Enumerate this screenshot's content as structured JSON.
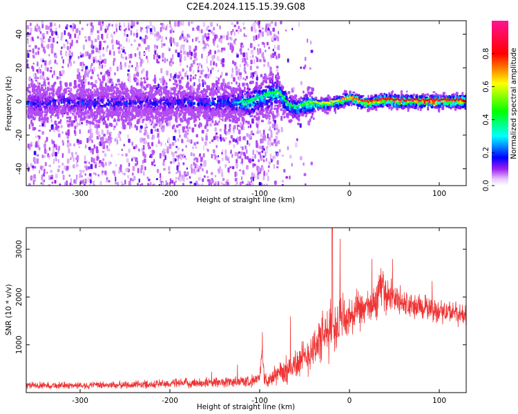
{
  "title": "C2E4.2024.115.15.39.G08",
  "chart_data": [
    {
      "type": "heatmap",
      "title": "C2E4.2024.115.15.39.G08",
      "xlabel": "Height of straight line (km)",
      "ylabel": "Frequency (Hz)",
      "xlim": [
        -360,
        130
      ],
      "ylim": [
        -50,
        48
      ],
      "xticks": [
        -300,
        -200,
        -100,
        0,
        100
      ],
      "yticks": [
        -40,
        -20,
        0,
        20,
        40
      ],
      "colorbar": {
        "label": "Normalized spectral amplitude",
        "range": [
          0,
          1
        ],
        "ticks": [
          0.0,
          0.2,
          0.4,
          0.6,
          0.8
        ],
        "tick_labels": [
          "0.0",
          "0.2",
          "0.4",
          "0.6",
          "0.8"
        ],
        "colors": [
          "#ffffff",
          "#a020f0",
          "#0000ff",
          "#00ffff",
          "#00ff00",
          "#ffff00",
          "#ff0000",
          "#ff1493"
        ]
      },
      "ridge": {
        "x": [
          -360,
          -300,
          -200,
          -130,
          -115,
          -100,
          -90,
          -80,
          -70,
          -60,
          -50,
          -40,
          -30,
          -20,
          -10,
          0,
          10,
          20,
          30,
          40,
          50,
          60,
          70,
          80,
          90,
          100,
          110,
          120,
          130
        ],
        "y": [
          0,
          0,
          0,
          0,
          0,
          3,
          5,
          6,
          -1,
          -3,
          -1,
          0,
          -1,
          0,
          1,
          3,
          1,
          0,
          1,
          2,
          1,
          1,
          1,
          1,
          1,
          1,
          1,
          1,
          1
        ],
        "peak_amplitude": [
          0.2,
          0.2,
          0.2,
          0.25,
          0.45,
          0.4,
          0.45,
          0.5,
          0.45,
          0.4,
          0.5,
          0.55,
          0.6,
          0.65,
          0.7,
          0.75,
          0.8,
          0.85,
          0.85,
          0.9,
          0.9,
          0.9,
          0.9,
          0.9,
          0.9,
          0.9,
          0.9,
          0.9,
          0.9
        ]
      },
      "grid": false
    },
    {
      "type": "line",
      "xlabel": "Height of straight line (km)",
      "ylabel": "SNR (10 * v/v)",
      "xlim": [
        -360,
        130
      ],
      "ylim": [
        0,
        3450
      ],
      "xticks": [
        -300,
        -200,
        -100,
        0,
        100
      ],
      "yticks": [
        1000,
        2000,
        3000
      ],
      "series": [
        {
          "color": "#ee3333",
          "x": [
            -360,
            -300,
            -250,
            -200,
            -150,
            -110,
            -100,
            -97,
            -95,
            -90,
            -80,
            -70,
            -60,
            -50,
            -40,
            -30,
            -25,
            -20,
            -15,
            -10,
            0,
            10,
            20,
            30,
            35,
            40,
            50,
            60,
            70,
            80,
            90,
            100,
            110,
            120,
            130
          ],
          "y": [
            150,
            150,
            160,
            190,
            210,
            240,
            300,
            880,
            280,
            260,
            400,
            450,
            620,
            700,
            950,
            1150,
            1200,
            1350,
            1400,
            1500,
            1550,
            1700,
            1750,
            1900,
            2300,
            2050,
            2000,
            1850,
            1800,
            1800,
            1750,
            1700,
            1700,
            1650,
            1600
          ],
          "noise_amplitude": [
            90,
            90,
            100,
            120,
            130,
            150,
            160,
            150,
            160,
            170,
            300,
            350,
            450,
            500,
            550,
            650,
            700,
            750,
            700,
            650,
            550,
            500,
            450,
            500,
            500,
            450,
            400,
            380,
            350,
            330,
            320,
            300,
            300,
            280,
            280
          ]
        }
      ],
      "grid": false
    }
  ]
}
